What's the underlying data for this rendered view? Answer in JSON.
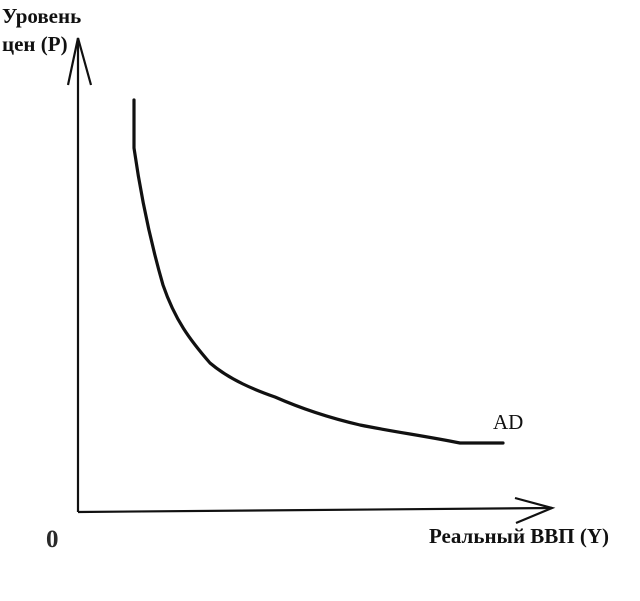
{
  "diagram": {
    "y_axis_label_line1": "Уровень",
    "y_axis_label_line2": "цен (P)",
    "x_axis_label": "Реальный ВВП (Y)",
    "origin_label": "0",
    "curve_label": "AD"
  },
  "colors": {
    "ink": "#111111",
    "background": "#ffffff"
  }
}
